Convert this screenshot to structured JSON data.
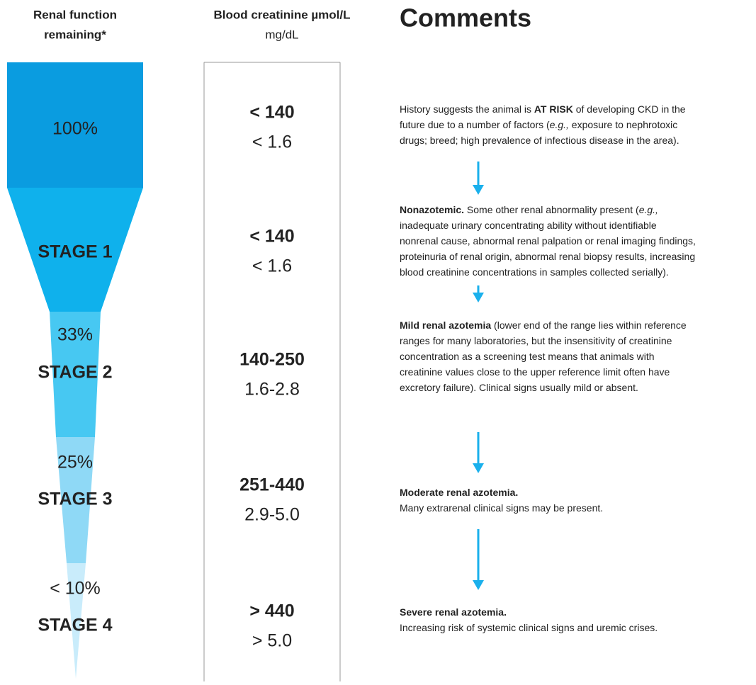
{
  "headers": {
    "function": [
      "Renal function",
      "remaining*"
    ],
    "creatinine": {
      "title": "Blood creatinine µmol/L",
      "unit": "mg/dL"
    },
    "comments": "Comments"
  },
  "funnel": [
    {
      "label": "100%"
    },
    {
      "label": "STAGE 1"
    },
    {
      "pct": "33%",
      "label": "STAGE 2"
    },
    {
      "pct": "25%",
      "label": "STAGE 3"
    },
    {
      "pct": "< 10%",
      "label": "STAGE 4"
    }
  ],
  "creatinine": [
    {
      "umol": "< 140",
      "mg": "< 1.6"
    },
    {
      "umol": "< 140",
      "mg": "< 1.6"
    },
    {
      "umol": "140-250",
      "mg": "1.6-2.8"
    },
    {
      "umol": "251-440",
      "mg": "2.9-5.0"
    },
    {
      "umol": "> 440",
      "mg": "> 5.0"
    }
  ],
  "comments": [
    {
      "lines": [
        [
          "History suggests the animal is ",
          {
            "b": "AT RISK"
          },
          " of developing CKD in the"
        ],
        [
          "future due to a number of factors (",
          {
            "i": "e.g.,"
          },
          " exposure to nephrotoxic"
        ],
        [
          "drugs; breed; high prevalence of infectious disease in the area)."
        ]
      ]
    },
    {
      "lines": [
        [
          {
            "b": "Nonazotemic."
          },
          " Some other renal abnormality present (",
          {
            "i": "e.g.,"
          }
        ],
        [
          "inadequate urinary concentrating ability without identifiable"
        ],
        [
          "nonrenal cause, abnormal renal palpation or renal imaging findings,"
        ],
        [
          "proteinuria of renal origin, abnormal renal biopsy results, increasing"
        ],
        [
          "blood creatinine concentrations in samples collected serially)."
        ]
      ]
    },
    {
      "lines": [
        [
          {
            "b": "Mild renal azotemia"
          },
          " (lower end of the range lies within reference"
        ],
        [
          "ranges for many laboratories, but the insensitivity of creatinine"
        ],
        [
          "concentration as a screening test means that animals with"
        ],
        [
          "creatinine values close to the upper reference limit often have"
        ],
        [
          "excretory failure). Clinical signs usually mild or absent."
        ]
      ]
    },
    {
      "lines": [
        [
          {
            "b": "Moderate renal azotemia."
          }
        ],
        [
          "Many extrarenal clinical signs may be present."
        ]
      ]
    },
    {
      "lines": [
        [
          {
            "b": "Severe renal azotemia."
          }
        ],
        [
          "Increasing risk of systemic clinical signs and uremic crises."
        ]
      ]
    }
  ]
}
